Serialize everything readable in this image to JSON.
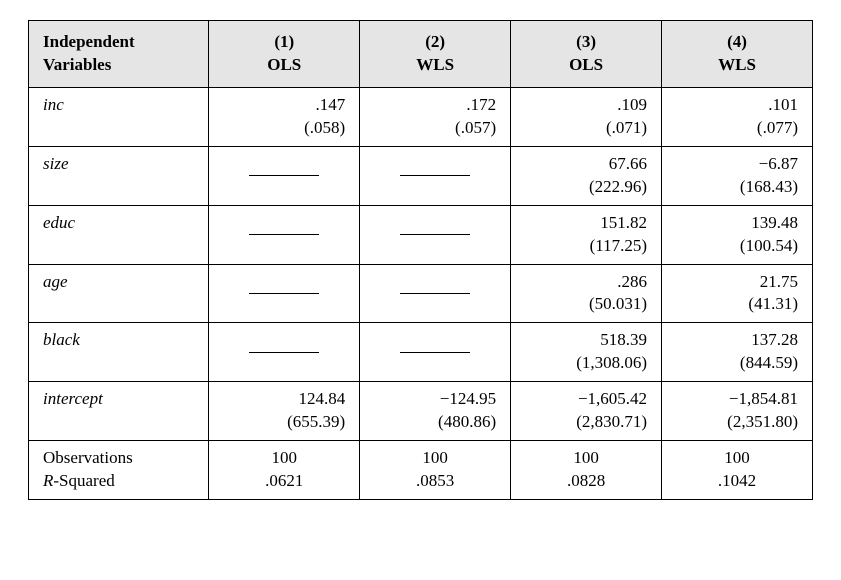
{
  "table": {
    "header": {
      "vars_label_line1": "Independent",
      "vars_label_line2": "Variables",
      "cols": [
        {
          "num": "(1)",
          "method": "OLS"
        },
        {
          "num": "(2)",
          "method": "WLS"
        },
        {
          "num": "(3)",
          "method": "OLS"
        },
        {
          "num": "(4)",
          "method": "WLS"
        }
      ]
    },
    "rows": [
      {
        "name": "inc",
        "cells": [
          {
            "coef": ".147",
            "se": "(.058)"
          },
          {
            "coef": ".172",
            "se": "(.057)"
          },
          {
            "coef": ".109",
            "se": "(.071)"
          },
          {
            "coef": ".101",
            "se": "(.077)"
          }
        ]
      },
      {
        "name": "size",
        "cells": [
          {
            "dash": true
          },
          {
            "dash": true
          },
          {
            "coef": "67.66",
            "se": "(222.96)"
          },
          {
            "coef": "−6.87",
            "se": "(168.43)"
          }
        ]
      },
      {
        "name": "educ",
        "cells": [
          {
            "dash": true
          },
          {
            "dash": true
          },
          {
            "coef": "151.82",
            "se": "(117.25)"
          },
          {
            "coef": "139.48",
            "se": "(100.54)"
          }
        ]
      },
      {
        "name": "age",
        "cells": [
          {
            "dash": true
          },
          {
            "dash": true
          },
          {
            "coef": ".286",
            "se": "(50.031)"
          },
          {
            "coef": "21.75",
            "se": "(41.31)"
          }
        ]
      },
      {
        "name": "black",
        "cells": [
          {
            "dash": true
          },
          {
            "dash": true
          },
          {
            "coef": "518.39",
            "se": "(1,308.06)"
          },
          {
            "coef": "137.28",
            "se": "(844.59)"
          }
        ]
      },
      {
        "name": "intercept",
        "cells": [
          {
            "coef": "124.84",
            "se": "(655.39)"
          },
          {
            "coef": "−124.95",
            "se": "(480.86)"
          },
          {
            "coef": "−1,605.42",
            "se": "(2,830.71)"
          },
          {
            "coef": "−1,854.81",
            "se": "(2,351.80)"
          }
        ]
      }
    ],
    "footer": {
      "label_line1": "Observations",
      "label_line2": "R",
      "label_line2_suffix": "-Squared",
      "cells": [
        {
          "obs": "100",
          "r2": ".0621"
        },
        {
          "obs": "100",
          "r2": ".0853"
        },
        {
          "obs": "100",
          "r2": ".0828"
        },
        {
          "obs": "100",
          "r2": ".1042"
        }
      ]
    }
  },
  "style": {
    "font_family": "Times New Roman",
    "header_bg": "#e5e5e5",
    "border_color": "#000000",
    "text_color": "#000000",
    "font_size_pt": 13
  }
}
